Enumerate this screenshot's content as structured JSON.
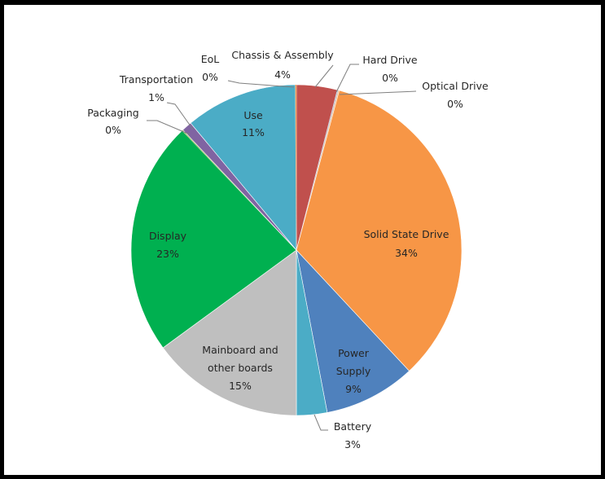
{
  "chart_data": {
    "type": "pie",
    "title": "",
    "start_angle_deg": 0,
    "direction": "clockwise",
    "legend": "none",
    "slices": [
      {
        "name": "Chassis & Assembly",
        "value": 4,
        "label": "4%",
        "color": "#c0504d"
      },
      {
        "name": "Hard Drive",
        "value": 0,
        "label": "0%",
        "color": "#b9cde5"
      },
      {
        "name": "Optical Drive",
        "value": 0,
        "label": "0%",
        "color": "#fac090"
      },
      {
        "name": "Solid State Drive",
        "value": 34,
        "label": "34%",
        "color": "#f79646"
      },
      {
        "name": "Power Supply",
        "value": 9,
        "label": "9%",
        "color": "#4f81bd"
      },
      {
        "name": "Battery",
        "value": 3,
        "label": "3%",
        "color": "#4bacc6"
      },
      {
        "name": "Mainboard and other boards",
        "value": 15,
        "label": "15%",
        "color": "#bfbfbf"
      },
      {
        "name": "Display",
        "value": 23,
        "label": "23%",
        "color": "#00b050"
      },
      {
        "name": "Packaging",
        "value": 0,
        "label": "0%",
        "color": "#9bbb59"
      },
      {
        "name": "Transportation",
        "value": 1,
        "label": "1%",
        "color": "#8064a2"
      },
      {
        "name": "Use",
        "value": 11,
        "label": "11%",
        "color": "#4bacc6"
      },
      {
        "name": "EoL",
        "value": 0,
        "label": "0%",
        "color": "#f79646"
      }
    ]
  }
}
